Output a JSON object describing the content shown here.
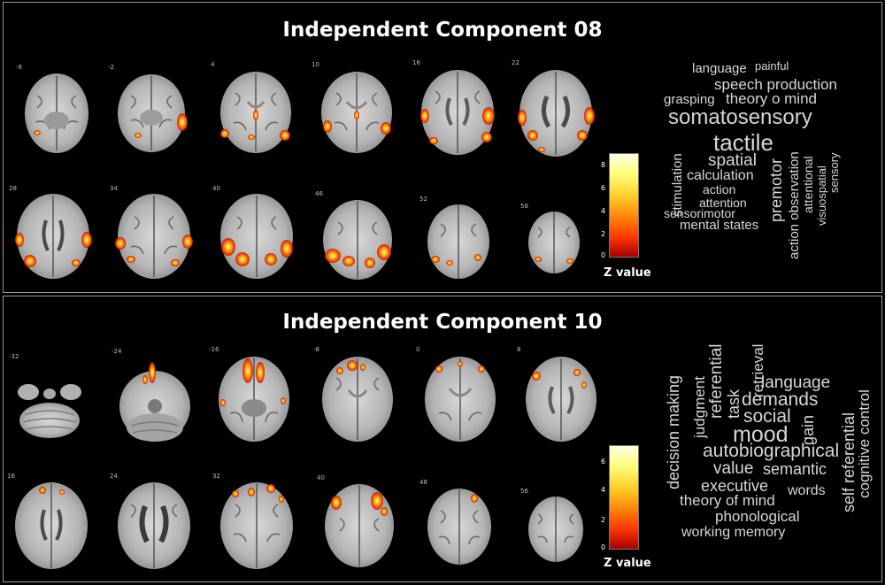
{
  "panels": [
    {
      "title": "Independent Component 08",
      "slice_labels": [
        "-8",
        "-2",
        "4",
        "10",
        "16",
        "22",
        "28",
        "34",
        "40",
        "46",
        "52",
        "58"
      ],
      "colorbar": {
        "ticks": [
          "8",
          "6",
          "4",
          "2",
          "0"
        ],
        "label": "Z value"
      },
      "word_cloud": [
        "language",
        "painful",
        "speech production",
        "grasping",
        "theory o mind",
        "somatosensory",
        "tactile",
        "spatial",
        "calculation",
        "action",
        "attention",
        "sensorimotor",
        "mental states",
        "stimulation",
        "premotor",
        "action observation",
        "attentional",
        "visuospatial",
        "sensory"
      ]
    },
    {
      "title": "Independent Component 10",
      "slice_labels": [
        "-32",
        "-24",
        "-16",
        "-8",
        "0",
        "8",
        "16",
        "24",
        "32",
        "40",
        "48",
        "56"
      ],
      "colorbar": {
        "ticks": [
          "6",
          "4",
          "2",
          "0"
        ],
        "label": "Z value"
      },
      "word_cloud": [
        "decision making",
        "judgment",
        "referential",
        "task",
        "retrieval",
        "language",
        "demands",
        "social",
        "gain",
        "mood",
        "autobiographical",
        "value",
        "semantic",
        "executive",
        "words",
        "theory of mind",
        "phonological",
        "working memory",
        "self referential",
        "cognitive control"
      ]
    }
  ],
  "colors": {
    "background": "#000000",
    "activation_low": "#d42000",
    "activation_mid": "#ff8c00",
    "activation_high": "#fff066"
  }
}
